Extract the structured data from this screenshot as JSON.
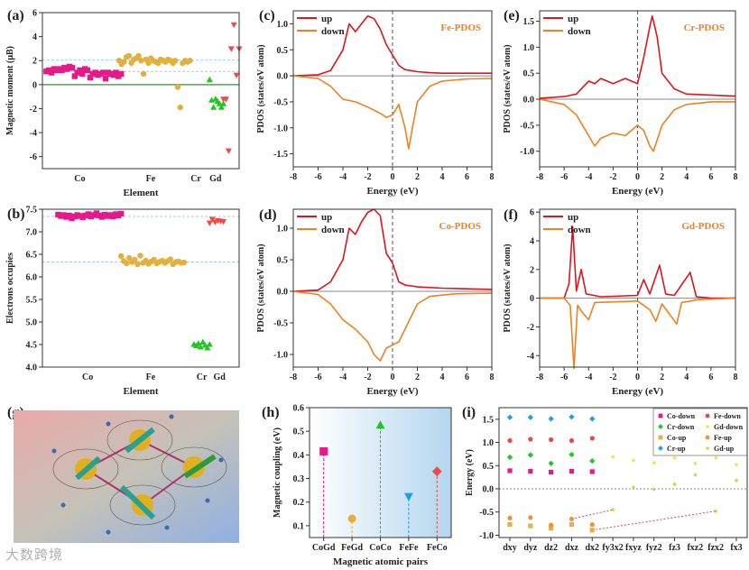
{
  "watermark": "大数跨境",
  "colors": {
    "co": "#e6198a",
    "fe": "#e2b03c",
    "cr": "#1ec81e",
    "gd": "#ef4a4a",
    "blue": "#1aa0e6",
    "up": "#e0141e",
    "down": "#f08020"
  },
  "chart_data": [
    {
      "id": "a",
      "panel_label": "(a)",
      "type": "scatter",
      "xlabel": "Element",
      "ylabel": "Magnetic moment (μB)",
      "ylim": [
        -7,
        6
      ],
      "yticks": [
        -6,
        -4,
        -2,
        0,
        2,
        4,
        6
      ],
      "ref_lines": [
        2.05,
        1.1
      ],
      "zero_line": 0,
      "groups": [
        {
          "name": "Co",
          "marker": "square",
          "color": "#e6198a",
          "values": [
            1.1,
            1.2,
            1.0,
            1.3,
            1.2,
            1.3,
            1.2,
            1.4,
            1.3,
            1.5,
            1.4,
            0.7,
            1.0,
            1.2,
            0.9,
            1.3,
            1.2,
            0.6,
            0.9,
            1.0,
            0.8,
            0.9,
            1.0,
            0.5,
            1.0,
            0.9,
            0.8,
            1.0,
            0.7,
            0.9
          ]
        },
        {
          "name": "Fe",
          "marker": "circle",
          "color": "#e2b03c",
          "values": [
            2.0,
            1.7,
            1.9,
            2.3,
            2.4,
            1.8,
            2.1,
            2.2,
            2.4,
            2.0,
            0.9,
            2.1,
            1.8,
            2.2,
            2.0,
            1.9,
            1.8,
            2.1,
            2.0,
            1.9,
            2.1,
            2.0,
            1.8,
            2.0,
            -0.2,
            -1.9,
            1.8,
            2.0,
            1.9,
            2.0
          ]
        },
        {
          "name": "Cr",
          "marker": "triangle",
          "color": "#1ec81e",
          "values": [
            0.4,
            -1.3,
            -1.9,
            -1.2,
            -1.4,
            -1.6,
            -1.9,
            -1.6
          ]
        },
        {
          "name": "Gd",
          "marker": "triangle-down",
          "color": "#ef4a4a",
          "values": [
            -1.2,
            -1.2,
            -5.5,
            3.0,
            5.0,
            0.8,
            3.0
          ]
        }
      ]
    },
    {
      "id": "b",
      "panel_label": "(b)",
      "type": "scatter",
      "xlabel": "Element",
      "ylabel": "Electrons occupies",
      "ylim": [
        4.0,
        7.5
      ],
      "yticks": [
        4.0,
        4.5,
        5.0,
        5.5,
        6.0,
        6.5,
        7.0,
        7.5
      ],
      "ref_lines": [
        7.34,
        6.33
      ],
      "groups": [
        {
          "name": "Co",
          "marker": "square",
          "color": "#e6198a",
          "values": [
            7.38,
            7.35,
            7.37,
            7.33,
            7.36,
            7.3,
            7.34,
            7.37,
            7.35,
            7.32,
            7.36,
            7.39,
            7.34,
            7.37,
            7.41,
            7.36,
            7.33,
            7.38,
            7.35,
            7.37,
            7.34,
            7.39,
            7.36,
            7.4
          ]
        },
        {
          "name": "Fe",
          "marker": "circle",
          "color": "#e2b03c",
          "values": [
            6.46,
            6.35,
            6.3,
            6.42,
            6.33,
            6.38,
            6.28,
            6.47,
            6.31,
            6.36,
            6.29,
            6.34,
            6.38,
            6.3,
            6.33,
            6.36,
            6.31,
            6.35,
            6.39,
            6.28,
            6.33,
            6.34,
            6.31,
            6.32
          ]
        },
        {
          "name": "Cr",
          "marker": "triangle",
          "color": "#1ec81e",
          "values": [
            4.5,
            4.47,
            4.52,
            4.44,
            4.55,
            4.48,
            4.42,
            4.5
          ]
        },
        {
          "name": "Gd",
          "marker": "triangle-down",
          "color": "#ef4a4a",
          "values": [
            7.2,
            7.28,
            7.22,
            7.25,
            7.24,
            7.23
          ]
        }
      ]
    },
    {
      "id": "c",
      "panel_label": "(c)",
      "type": "line",
      "title": "Fe-PDOS",
      "xlabel": "Energy (eV)",
      "ylabel": "PDOS (states/eV atom)",
      "xlim": [
        -8,
        8
      ],
      "ylim": [
        -1.75,
        1.25
      ],
      "xticks": [
        -8,
        -6,
        -4,
        -2,
        0,
        2,
        4,
        6,
        8
      ],
      "yticks": [
        -1.5,
        -1.0,
        -0.5,
        0.0,
        0.5,
        1.0
      ],
      "series": [
        {
          "name": "up",
          "color": "#e0141e",
          "x": [
            -8,
            -6,
            -5,
            -4,
            -3.5,
            -3,
            -2.5,
            -2,
            -1.5,
            -1,
            -0.5,
            0,
            0.5,
            1,
            2,
            3,
            4,
            6,
            8
          ],
          "y": [
            0,
            0.02,
            0.1,
            0.5,
            1.0,
            0.85,
            1.0,
            1.15,
            1.1,
            0.9,
            0.6,
            0.4,
            0.2,
            0.12,
            0.08,
            0.06,
            0.05,
            0.05,
            0.05
          ]
        },
        {
          "name": "down",
          "color": "#f08020",
          "x": [
            -8,
            -6,
            -5,
            -4,
            -3,
            -2,
            -1,
            -0.5,
            0,
            0.5,
            1,
            1.3,
            1.6,
            2,
            3,
            4,
            6,
            8
          ],
          "y": [
            0,
            -0.05,
            -0.2,
            -0.45,
            -0.5,
            -0.6,
            -0.72,
            -0.8,
            -0.75,
            -0.55,
            -1.0,
            -1.4,
            -1.0,
            -0.5,
            -0.2,
            -0.1,
            -0.06,
            -0.05
          ]
        }
      ]
    },
    {
      "id": "d",
      "panel_label": "(d)",
      "type": "line",
      "title": "Co-PDOS",
      "xlabel": "Energy (eV)",
      "ylabel": "PDOS (states/eV atom)",
      "xlim": [
        -8,
        8
      ],
      "ylim": [
        -1.2,
        1.3
      ],
      "xticks": [
        -8,
        -6,
        -4,
        -2,
        0,
        2,
        4,
        6,
        8
      ],
      "yticks": [
        -1.0,
        -0.5,
        0.0,
        0.5,
        1.0
      ],
      "series": [
        {
          "name": "up",
          "color": "#e0141e",
          "x": [
            -8,
            -6,
            -5,
            -4,
            -3.5,
            -3,
            -2.5,
            -2,
            -1.5,
            -1,
            -0.5,
            0,
            0.5,
            1,
            2,
            4,
            8
          ],
          "y": [
            0,
            0.02,
            0.15,
            0.5,
            1.0,
            0.9,
            1.1,
            1.25,
            1.3,
            1.2,
            0.6,
            0.45,
            0.15,
            0.1,
            0.07,
            0.05,
            0.03
          ]
        },
        {
          "name": "down",
          "color": "#f08020",
          "x": [
            -8,
            -6,
            -5,
            -4,
            -3,
            -2,
            -1.5,
            -1,
            -0.5,
            0,
            0.5,
            1,
            1.5,
            2,
            3,
            5,
            8
          ],
          "y": [
            0,
            -0.05,
            -0.2,
            -0.45,
            -0.6,
            -0.8,
            -1.0,
            -1.1,
            -0.9,
            -0.85,
            -0.8,
            -0.6,
            -0.4,
            -0.2,
            -0.08,
            -0.04,
            -0.03
          ]
        }
      ]
    },
    {
      "id": "e",
      "panel_label": "(e)",
      "type": "line",
      "title": "Cr-PDOS",
      "xlabel": "Energy (eV)",
      "ylabel": "PDOS (states/eV atom)",
      "xlim": [
        -8,
        8
      ],
      "ylim": [
        -1.3,
        1.7
      ],
      "xticks": [
        -8,
        -6,
        -4,
        -2,
        0,
        2,
        4,
        6,
        8
      ],
      "yticks": [
        -1.0,
        -0.5,
        0.0,
        0.5,
        1.0,
        1.5
      ],
      "series": [
        {
          "name": "up",
          "color": "#e0141e",
          "x": [
            -8,
            -6,
            -5,
            -4,
            -3.5,
            -3,
            -2,
            -1,
            0,
            0.5,
            1,
            1.2,
            1.6,
            2,
            3,
            4,
            6,
            8
          ],
          "y": [
            0.02,
            0.05,
            0.1,
            0.35,
            0.3,
            0.4,
            0.3,
            0.4,
            0.3,
            0.8,
            1.4,
            1.6,
            1.2,
            0.5,
            0.2,
            0.1,
            0.08,
            0.06
          ]
        },
        {
          "name": "down",
          "color": "#f08020",
          "x": [
            -8,
            -6,
            -5,
            -4,
            -3.5,
            -3,
            -2,
            -1,
            0,
            0.5,
            1,
            1.3,
            2,
            3,
            4,
            6,
            8
          ],
          "y": [
            0,
            -0.1,
            -0.3,
            -0.7,
            -0.9,
            -0.75,
            -0.65,
            -0.7,
            -0.5,
            -0.6,
            -0.9,
            -1.0,
            -0.5,
            -0.2,
            -0.1,
            -0.05,
            -0.05
          ]
        }
      ]
    },
    {
      "id": "f",
      "panel_label": "(f)",
      "type": "line",
      "title": "Gd-PDOS",
      "xlabel": "Energy (eV)",
      "ylabel": "PDOS (states/eV atom)",
      "xlim": [
        -8,
        8
      ],
      "ylim": [
        -4.8,
        6.2
      ],
      "xticks": [
        -8,
        -6,
        -4,
        -2,
        0,
        2,
        4,
        6,
        8
      ],
      "yticks": [
        -4,
        -2,
        0,
        2,
        4,
        6
      ],
      "series": [
        {
          "name": "up",
          "color": "#e0141e",
          "x": [
            -8,
            -6,
            -5.6,
            -5.3,
            -5,
            -4.6,
            -4.2,
            -3,
            0,
            0.5,
            1,
            1.8,
            2.3,
            3,
            4.3,
            4.8,
            6,
            8
          ],
          "y": [
            0,
            0,
            1,
            5.0,
            0.5,
            2.0,
            0.3,
            0.1,
            0.2,
            1.3,
            0.3,
            2.3,
            0.3,
            0.2,
            1.8,
            0.1,
            0,
            0
          ]
        },
        {
          "name": "down",
          "color": "#f08020",
          "x": [
            -8,
            -6,
            -5.5,
            -5.2,
            -4.9,
            -4.5,
            -4,
            -3.5,
            0,
            1,
            1.5,
            2,
            3.2,
            3.6,
            5,
            8
          ],
          "y": [
            0,
            0,
            -0.5,
            -4.9,
            -0.5,
            -1.0,
            -1.5,
            -0.3,
            -0.2,
            -0.8,
            -1.6,
            -0.4,
            -1.8,
            -0.3,
            -0.1,
            0
          ]
        }
      ]
    },
    {
      "id": "h",
      "panel_label": "(h)",
      "type": "scatter",
      "xlabel": "Magnetic atomic pairs",
      "ylabel": "Magnetic coupling (eV)",
      "ylim": [
        0.05,
        0.6
      ],
      "yticks": [
        0.1,
        0.2,
        0.3,
        0.4,
        0.5,
        0.6
      ],
      "categories": [
        "CoGd",
        "FeGd",
        "CoCo",
        "FeFe",
        "FeCo"
      ],
      "values": [
        0.415,
        0.13,
        0.525,
        0.225,
        0.33
      ],
      "markers": [
        "square",
        "circle",
        "triangle",
        "triangle-down",
        "diamond"
      ],
      "colors": [
        "#e6198a",
        "#e2b03c",
        "#1ec81e",
        "#1aa0e6",
        "#ef4a4a"
      ]
    },
    {
      "id": "i",
      "panel_label": "(i)",
      "type": "scatter",
      "xlabel": "",
      "ylabel": "Energy (eV)",
      "ylim": [
        -1.05,
        1.75
      ],
      "yticks": [
        -1.0,
        -0.5,
        0.0,
        0.5,
        1.0,
        1.5
      ],
      "categories": [
        "dxy",
        "dyz",
        "dz2",
        "dxz",
        "dx2",
        "fy3x2",
        "fxyz",
        "fyz2",
        "fz3",
        "fxz2",
        "fzx2",
        "fx3"
      ],
      "series": [
        {
          "name": "Co-down",
          "marker": "square",
          "color": "#e6198a",
          "start": 0,
          "values": [
            0.39,
            0.38,
            0.36,
            0.38,
            0.37
          ]
        },
        {
          "name": "Co-up",
          "marker": "square",
          "color": "#e8b040",
          "start": 0,
          "values": [
            -0.77,
            -0.8,
            -0.85,
            -0.77,
            -0.89
          ]
        },
        {
          "name": "Fe-down",
          "marker": "circle",
          "color": "#e84848",
          "start": 0,
          "values": [
            1.04,
            1.07,
            1.06,
            1.04,
            1.09
          ]
        },
        {
          "name": "Fe-up",
          "marker": "circle",
          "color": "#f0903a",
          "start": 0,
          "values": [
            -0.63,
            -0.62,
            -0.78,
            -0.65,
            -0.77
          ]
        },
        {
          "name": "Cr-down",
          "marker": "diamond",
          "color": "#1ec81e",
          "start": 0,
          "values": [
            0.68,
            0.73,
            0.55,
            0.74,
            0.6
          ]
        },
        {
          "name": "Cr-up",
          "marker": "diamond",
          "color": "#1aa0e6",
          "start": 0,
          "values": [
            1.54,
            1.54,
            1.51,
            1.55,
            1.51
          ]
        },
        {
          "name": "Gd-down",
          "marker": "star",
          "color": "#e6e040",
          "start": 5,
          "values": [
            0.69,
            0.61,
            0.56,
            0.67,
            0.55,
            0.67,
            0.52
          ]
        },
        {
          "name": "Gd-up",
          "marker": "star",
          "color": "#b0d840",
          "start": 5,
          "values": [
            -0.45,
            0.03,
            -0.01,
            0.1,
            0.3,
            -0.48,
            0.18
          ]
        }
      ],
      "connections": [
        {
          "from": [
            "dxz",
            -0.65
          ],
          "to": [
            "fy3x2",
            -0.45
          ]
        },
        {
          "from": [
            "dx2",
            -0.89
          ],
          "to": [
            "fzx2",
            -0.48
          ]
        }
      ]
    }
  ],
  "panel_g": {
    "panel_label": "(g)"
  }
}
